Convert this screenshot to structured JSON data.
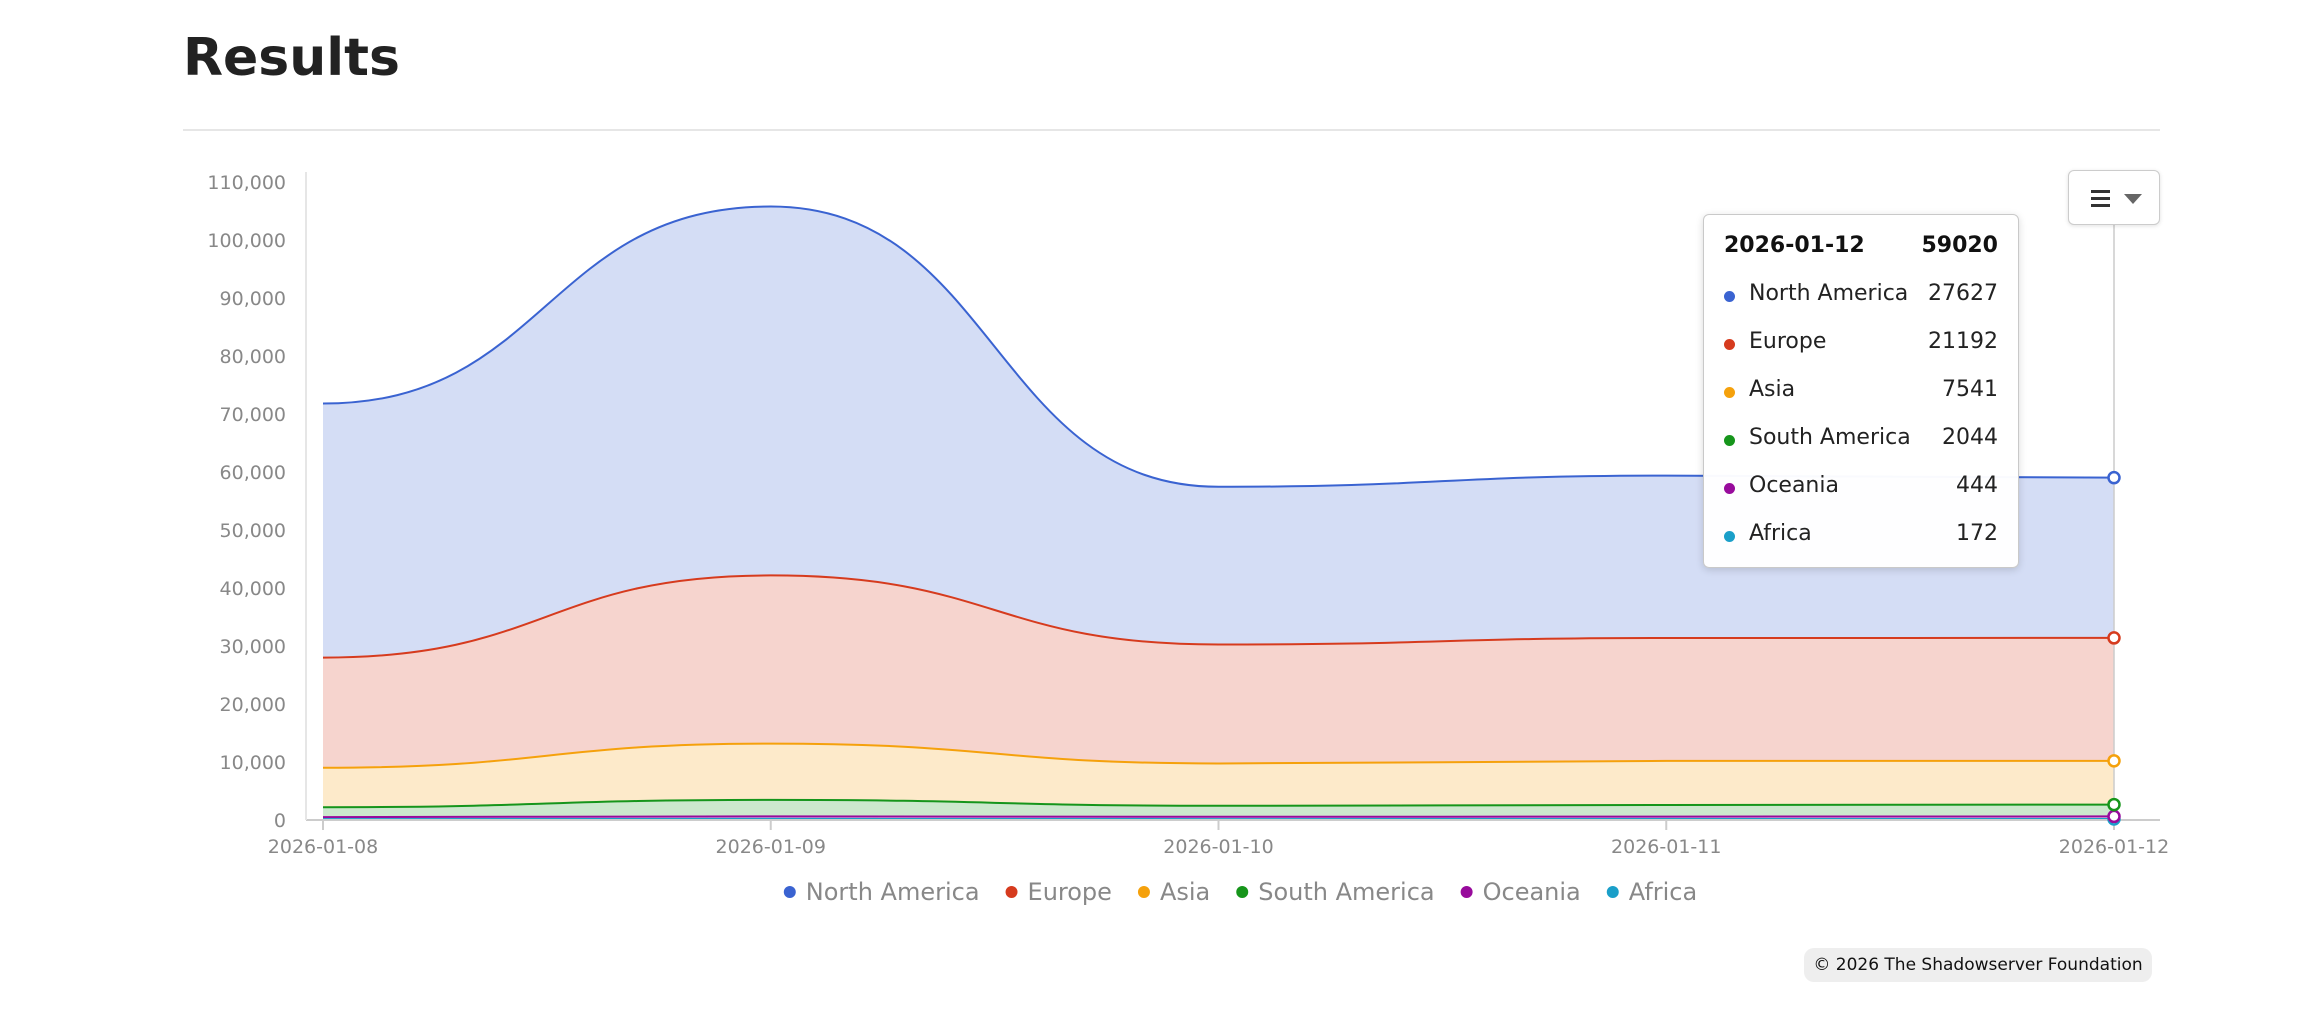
{
  "page": {
    "title": "Results"
  },
  "menu": {
    "icon": "hamburger-menu-icon"
  },
  "credit": "© 2026 The Shadowserver Foundation",
  "tooltip": {
    "date": "2026-01-12",
    "total": "59020",
    "rows": [
      {
        "name": "North America",
        "value": "27627",
        "color": "#3a63d1"
      },
      {
        "name": "Europe",
        "value": "21192",
        "color": "#d63b1e"
      },
      {
        "name": "Asia",
        "value": "7541",
        "color": "#f5a10c"
      },
      {
        "name": "South America",
        "value": "2044",
        "color": "#16951b"
      },
      {
        "name": "Oceania",
        "value": "444",
        "color": "#980b9c"
      },
      {
        "name": "Africa",
        "value": "172",
        "color": "#1a9fc9"
      }
    ]
  },
  "chart_data": {
    "type": "area",
    "stacked": true,
    "smooth": true,
    "title": "",
    "xlabel": "",
    "ylabel": "",
    "categories": [
      "2026-01-08",
      "2026-01-09",
      "2026-01-10",
      "2026-01-11",
      "2026-01-12"
    ],
    "ylim": [
      0,
      110000
    ],
    "yticks": [
      0,
      10000,
      20000,
      30000,
      40000,
      50000,
      60000,
      70000,
      80000,
      90000,
      100000,
      110000
    ],
    "ytick_labels": [
      "0",
      "10,000",
      "20,000",
      "30,000",
      "40,000",
      "50,000",
      "60,000",
      "70,000",
      "80,000",
      "90,000",
      "100,000",
      "110,000"
    ],
    "grid": false,
    "legend_position": "bottom-center",
    "series": [
      {
        "name": "Africa",
        "color": "#1a9fc9",
        "values": [
          150,
          190,
          160,
          165,
          172
        ]
      },
      {
        "name": "Oceania",
        "color": "#980b9c",
        "values": [
          350,
          430,
          390,
          420,
          444
        ]
      },
      {
        "name": "South America",
        "color": "#16951b",
        "values": [
          1700,
          2850,
          1900,
          2000,
          2044
        ]
      },
      {
        "name": "Asia",
        "color": "#f5a10c",
        "values": [
          6800,
          9700,
          7300,
          7600,
          7541
        ]
      },
      {
        "name": "Europe",
        "color": "#d63b1e",
        "values": [
          19000,
          29000,
          20500,
          21200,
          21192
        ]
      },
      {
        "name": "North America",
        "color": "#3a63d1",
        "values": [
          43800,
          63600,
          27200,
          28000,
          27627
        ]
      }
    ],
    "legend": [
      "North America",
      "Europe",
      "Asia",
      "South America",
      "Oceania",
      "Africa"
    ],
    "highlighted_category": "2026-01-12"
  }
}
